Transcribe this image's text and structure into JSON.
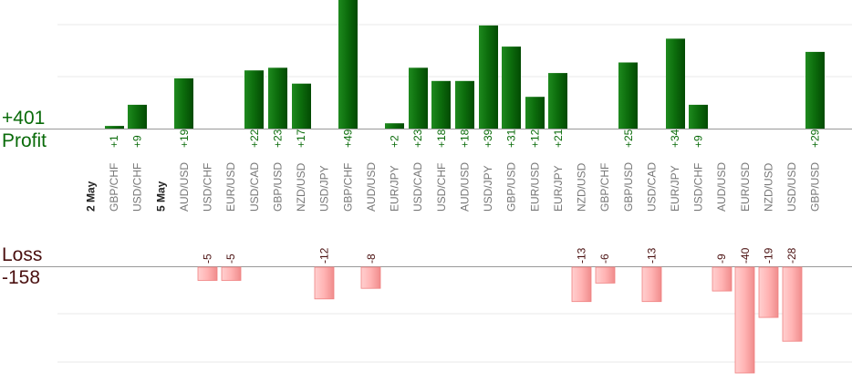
{
  "summary": {
    "profit_total": "+401",
    "profit_label": "Profit",
    "loss_label": "Loss",
    "loss_total": "-158"
  },
  "colors": {
    "profit_bar": "#0a6b0a",
    "loss_bar": "#ffb0b0",
    "profit_text": "#0a6b0a",
    "loss_text": "#4a1010",
    "grid": "#e8e8e8",
    "axis": "#999999"
  },
  "chart_data": {
    "type": "bar",
    "title": "",
    "xlabel": "",
    "ylabel": "",
    "grid": true,
    "groups": [
      {
        "date": "2 May",
        "trades": [
          {
            "pair": "GBP/CHF",
            "value": 1
          },
          {
            "pair": "USD/CHF",
            "value": 9
          }
        ]
      },
      {
        "date": "5 May",
        "trades": [
          {
            "pair": "AUD/USD",
            "value": 19
          },
          {
            "pair": "USD/CHF",
            "value": -5
          },
          {
            "pair": "EUR/USD",
            "value": -5
          },
          {
            "pair": "USD/CAD",
            "value": 22
          },
          {
            "pair": "GBP/USD",
            "value": 23
          },
          {
            "pair": "NZD/USD",
            "value": 17
          },
          {
            "pair": "USD/JPY",
            "value": -12
          },
          {
            "pair": "GBP/CHF",
            "value": 49
          },
          {
            "pair": "AUD/USD",
            "value": -8
          },
          {
            "pair": "EUR/JPY",
            "value": 2
          },
          {
            "pair": "USD/CAD",
            "value": 23
          },
          {
            "pair": "USD/CHF",
            "value": 18
          },
          {
            "pair": "AUD/USD",
            "value": 18
          },
          {
            "pair": "USD/JPY",
            "value": 39
          },
          {
            "pair": "GBP/USD",
            "value": 31
          },
          {
            "pair": "EUR/USD",
            "value": 12
          },
          {
            "pair": "EUR/JPY",
            "value": 21
          },
          {
            "pair": "NZD/USD",
            "value": -13
          },
          {
            "pair": "GBP/CHF",
            "value": -6
          },
          {
            "pair": "GBP/USD",
            "value": 25
          },
          {
            "pair": "USD/CAD",
            "value": -13
          },
          {
            "pair": "EUR/JPY",
            "value": 34
          },
          {
            "pair": "USD/CHF",
            "value": 9
          },
          {
            "pair": "AUD/USD",
            "value": -9
          },
          {
            "pair": "EUR/USD",
            "value": -40
          },
          {
            "pair": "NZD/USD",
            "value": -19
          },
          {
            "pair": "USD/USD",
            "value": -28
          },
          {
            "pair": "GBP/USD",
            "value": 29
          }
        ]
      }
    ]
  }
}
